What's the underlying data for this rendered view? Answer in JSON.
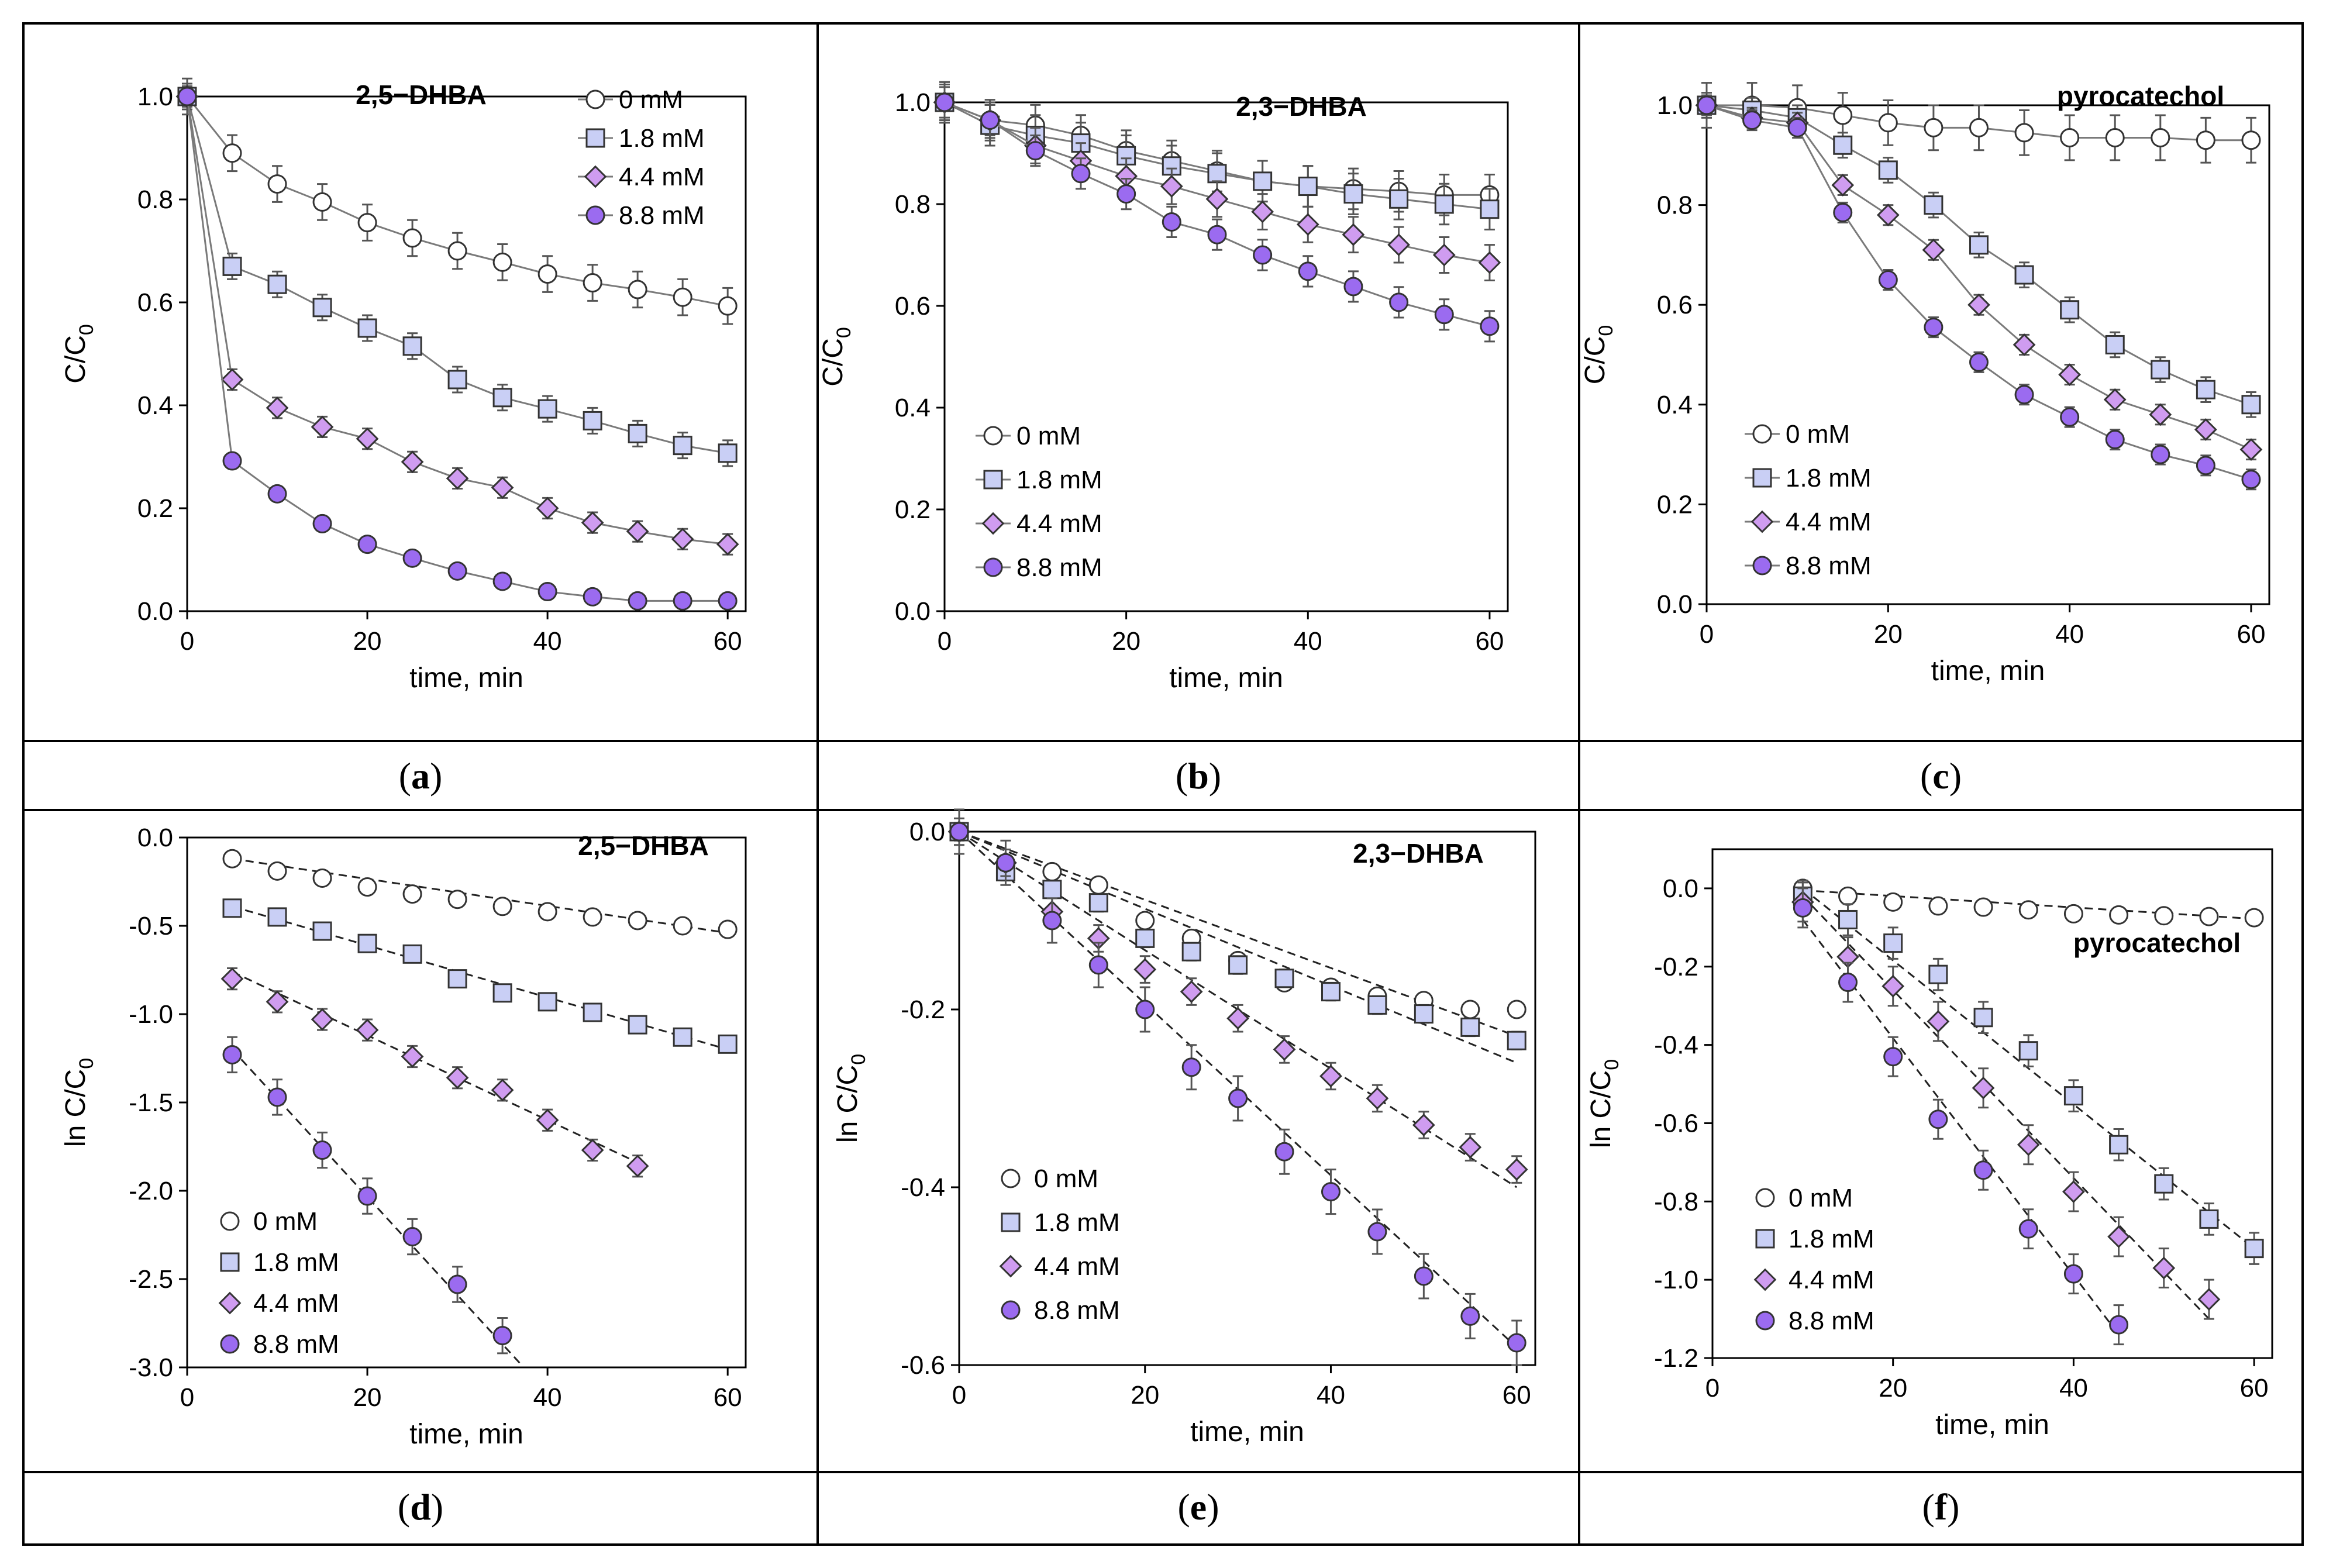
{
  "colors": {
    "c0": "#ffffff",
    "c18": "#c9cff5",
    "c44": "#cf9cf0",
    "c88": "#9b6bf0",
    "marker_stroke": "#333333",
    "line": "#7a7a7a"
  },
  "captions": [
    "a",
    "b",
    "c",
    "d",
    "e",
    "f"
  ],
  "chart_data": [
    {
      "type": "line",
      "title": "2,5−DHBA",
      "xlabel": "time, min",
      "ylabel": "C/C",
      "ylabel_sub": "0",
      "xlim": [
        0,
        62
      ],
      "ylim": [
        0,
        1.0
      ],
      "xticks": [
        0,
        20,
        40,
        60
      ],
      "yticks": [
        0.0,
        0.2,
        0.4,
        0.6,
        0.8,
        1.0
      ],
      "ytick_labels": [
        "0.0",
        "0.2",
        "0.4",
        "0.6",
        "0.8",
        "1.0"
      ],
      "legend_position": "top-right",
      "series": [
        {
          "name": "0 mM",
          "marker": "circle",
          "x": [
            0,
            5,
            10,
            15,
            20,
            25,
            30,
            35,
            40,
            45,
            50,
            55,
            60
          ],
          "y": [
            1.0,
            0.89,
            0.83,
            0.795,
            0.755,
            0.725,
            0.7,
            0.678,
            0.655,
            0.638,
            0.625,
            0.61,
            0.593
          ],
          "err": 0.035
        },
        {
          "name": "1.8 mM",
          "marker": "square",
          "x": [
            0,
            5,
            10,
            15,
            20,
            25,
            30,
            35,
            40,
            45,
            50,
            55,
            60
          ],
          "y": [
            1.0,
            0.67,
            0.635,
            0.59,
            0.55,
            0.515,
            0.45,
            0.415,
            0.393,
            0.37,
            0.345,
            0.322,
            0.307
          ],
          "err": 0.025
        },
        {
          "name": "4.4 mM",
          "marker": "diamond",
          "x": [
            0,
            5,
            10,
            15,
            20,
            25,
            30,
            35,
            40,
            45,
            50,
            55,
            60
          ],
          "y": [
            1.0,
            0.45,
            0.395,
            0.358,
            0.335,
            0.29,
            0.258,
            0.24,
            0.2,
            0.172,
            0.155,
            0.14,
            0.13
          ],
          "err": 0.02
        },
        {
          "name": "8.8 mM",
          "marker": "circle",
          "x": [
            0,
            5,
            10,
            15,
            20,
            25,
            30,
            35,
            40,
            45,
            50,
            55,
            60
          ],
          "y": [
            1.0,
            0.292,
            0.228,
            0.17,
            0.13,
            0.103,
            0.078,
            0.058,
            0.038,
            0.028,
            0.02,
            0.02,
            0.02
          ],
          "err": 0.0
        }
      ]
    },
    {
      "type": "line",
      "title": "2,3−DHBA",
      "xlabel": "time, min",
      "ylabel": "C/C",
      "ylabel_sub": "0",
      "xlim": [
        0,
        62
      ],
      "ylim": [
        0,
        1.0
      ],
      "xticks": [
        0,
        20,
        40,
        60
      ],
      "yticks": [
        0.0,
        0.2,
        0.4,
        0.6,
        0.8,
        1.0
      ],
      "ytick_labels": [
        "0.0",
        "0.2",
        "0.4",
        "0.6",
        "0.8",
        "1.0"
      ],
      "legend_position": "bottom-left",
      "series": [
        {
          "name": "0 mM",
          "marker": "circle",
          "x": [
            0,
            5,
            10,
            15,
            20,
            25,
            30,
            35,
            40,
            45,
            50,
            55,
            60
          ],
          "y": [
            1.0,
            0.965,
            0.955,
            0.935,
            0.905,
            0.885,
            0.865,
            0.845,
            0.835,
            0.83,
            0.825,
            0.818,
            0.818
          ],
          "err": 0.04
        },
        {
          "name": "1.8 mM",
          "marker": "square",
          "x": [
            0,
            5,
            10,
            15,
            20,
            25,
            30,
            35,
            40,
            45,
            50,
            55,
            60
          ],
          "y": [
            1.0,
            0.955,
            0.935,
            0.92,
            0.895,
            0.875,
            0.86,
            0.845,
            0.835,
            0.82,
            0.81,
            0.8,
            0.79
          ],
          "err": 0.04
        },
        {
          "name": "4.4 mM",
          "marker": "diamond",
          "x": [
            0,
            5,
            10,
            15,
            20,
            25,
            30,
            35,
            40,
            45,
            50,
            55,
            60
          ],
          "y": [
            1.0,
            0.965,
            0.915,
            0.885,
            0.855,
            0.835,
            0.81,
            0.785,
            0.76,
            0.74,
            0.72,
            0.7,
            0.685
          ],
          "err": 0.035
        },
        {
          "name": "8.8 mM",
          "marker": "circle",
          "x": [
            0,
            5,
            10,
            15,
            20,
            25,
            30,
            35,
            40,
            45,
            50,
            55,
            60
          ],
          "y": [
            1.0,
            0.965,
            0.905,
            0.86,
            0.82,
            0.765,
            0.74,
            0.7,
            0.668,
            0.638,
            0.607,
            0.583,
            0.56
          ],
          "err": 0.03
        }
      ]
    },
    {
      "type": "line",
      "title": "pyrocatechol",
      "xlabel": "time, min",
      "ylabel": "C/C",
      "ylabel_sub": "0",
      "xlim": [
        0,
        62
      ],
      "ylim": [
        0,
        1.0
      ],
      "xticks": [
        0,
        20,
        40,
        60
      ],
      "yticks": [
        0.0,
        0.2,
        0.4,
        0.6,
        0.8,
        1.0
      ],
      "ytick_labels": [
        "0.0",
        "0.2",
        "0.4",
        "0.6",
        "0.8",
        "1.0"
      ],
      "legend_position": "bottom-left",
      "series": [
        {
          "name": "0 mM",
          "marker": "circle",
          "x": [
            0,
            5,
            10,
            15,
            20,
            25,
            30,
            35,
            40,
            45,
            50,
            55,
            60
          ],
          "y": [
            1.0,
            1.0,
            0.995,
            0.98,
            0.965,
            0.955,
            0.955,
            0.945,
            0.935,
            0.935,
            0.935,
            0.93,
            0.93
          ],
          "err": 0.045
        },
        {
          "name": "1.8 mM",
          "marker": "square",
          "x": [
            0,
            5,
            10,
            15,
            20,
            25,
            30,
            35,
            40,
            45,
            50,
            55,
            60
          ],
          "y": [
            1.0,
            0.99,
            0.975,
            0.92,
            0.87,
            0.8,
            0.72,
            0.66,
            0.59,
            0.52,
            0.47,
            0.43,
            0.4
          ],
          "err": 0.025
        },
        {
          "name": "4.4 mM",
          "marker": "diamond",
          "x": [
            0,
            5,
            10,
            15,
            20,
            25,
            30,
            35,
            40,
            45,
            50,
            55,
            60
          ],
          "y": [
            1.0,
            0.975,
            0.965,
            0.84,
            0.78,
            0.71,
            0.6,
            0.52,
            0.46,
            0.41,
            0.38,
            0.35,
            0.31
          ],
          "err": 0.02
        },
        {
          "name": "8.8 mM",
          "marker": "circle",
          "x": [
            0,
            5,
            10,
            15,
            20,
            25,
            30,
            35,
            40,
            45,
            50,
            55,
            60
          ],
          "y": [
            1.0,
            0.97,
            0.955,
            0.785,
            0.65,
            0.555,
            0.485,
            0.42,
            0.375,
            0.33,
            0.3,
            0.278,
            0.25
          ],
          "err": 0.02
        }
      ]
    },
    {
      "type": "scatter",
      "title": "2,5−DHBA",
      "xlabel": "time, min",
      "ylabel": "ln C/C",
      "ylabel_sub": "0",
      "xlim": [
        0,
        62
      ],
      "ylim": [
        -3.0,
        0.0
      ],
      "xticks": [
        0,
        20,
        40,
        60
      ],
      "yticks": [
        0.0,
        -0.5,
        -1.0,
        -1.5,
        -2.0,
        -2.5,
        -3.0
      ],
      "ytick_labels": [
        "0.0",
        "-0.5",
        "-1.0",
        "-1.5",
        "-2.0",
        "-2.5",
        "-3.0"
      ],
      "legend_position": "bottom-left",
      "series": [
        {
          "name": "0 mM",
          "marker": "circle",
          "x": [
            5,
            10,
            15,
            20,
            25,
            30,
            35,
            40,
            45,
            50,
            55,
            60
          ],
          "y": [
            -0.12,
            -0.19,
            -0.23,
            -0.28,
            -0.32,
            -0.35,
            -0.39,
            -0.42,
            -0.45,
            -0.47,
            -0.5,
            -0.52
          ],
          "err": 0.0,
          "fit": [
            [
              5,
              -0.12
            ],
            [
              60,
              -0.54
            ]
          ]
        },
        {
          "name": "1.8 mM",
          "marker": "square",
          "x": [
            5,
            10,
            15,
            20,
            25,
            30,
            35,
            40,
            45,
            50,
            55,
            60
          ],
          "y": [
            -0.4,
            -0.45,
            -0.53,
            -0.6,
            -0.66,
            -0.8,
            -0.88,
            -0.93,
            -0.99,
            -1.06,
            -1.13,
            -1.17
          ],
          "err": 0.04,
          "fit": [
            [
              5,
              -0.39
            ],
            [
              60,
              -1.2
            ]
          ]
        },
        {
          "name": "4.4 mM",
          "marker": "diamond",
          "x": [
            5,
            10,
            15,
            20,
            25,
            30,
            35,
            40,
            45,
            50
          ],
          "y": [
            -0.8,
            -0.93,
            -1.03,
            -1.09,
            -1.24,
            -1.36,
            -1.43,
            -1.6,
            -1.77,
            -1.86
          ],
          "err": 0.06,
          "fit": [
            [
              5,
              -0.76
            ],
            [
              50,
              -1.84
            ]
          ]
        },
        {
          "name": "8.8 mM",
          "marker": "circle",
          "x": [
            5,
            10,
            15,
            20,
            25,
            30,
            35
          ],
          "y": [
            -1.23,
            -1.47,
            -1.77,
            -2.03,
            -2.26,
            -2.53,
            -2.82
          ],
          "err": 0.1,
          "fit": [
            [
              5,
              -1.2
            ],
            [
              37,
              -2.98
            ]
          ]
        }
      ]
    },
    {
      "type": "scatter",
      "title": "2,3−DHBA",
      "xlabel": "time, min",
      "ylabel": "ln C/C",
      "ylabel_sub": "0",
      "xlim": [
        0,
        62
      ],
      "ylim": [
        -0.6,
        0.0
      ],
      "xticks": [
        0,
        20,
        40,
        60
      ],
      "yticks": [
        0.0,
        -0.2,
        -0.4,
        -0.6
      ],
      "ytick_labels": [
        "0.0",
        "-0.2",
        "-0.4",
        "-0.6"
      ],
      "legend_position": "bottom-left",
      "series": [
        {
          "name": "0 mM",
          "marker": "circle",
          "x": [
            0,
            5,
            10,
            15,
            20,
            25,
            30,
            35,
            40,
            45,
            50,
            55,
            60
          ],
          "y": [
            0,
            -0.035,
            -0.045,
            -0.06,
            -0.1,
            -0.12,
            -0.145,
            -0.17,
            -0.175,
            -0.185,
            -0.19,
            -0.2,
            -0.2
          ],
          "err": 0.0,
          "fit": [
            [
              0,
              0
            ],
            [
              60,
              -0.23
            ]
          ]
        },
        {
          "name": "1.8 mM",
          "marker": "square",
          "x": [
            0,
            5,
            10,
            15,
            20,
            25,
            30,
            35,
            40,
            45,
            50,
            55,
            60
          ],
          "y": [
            0,
            -0.045,
            -0.065,
            -0.08,
            -0.12,
            -0.135,
            -0.15,
            -0.165,
            -0.18,
            -0.195,
            -0.205,
            -0.22,
            -0.235
          ],
          "err": 0.01,
          "fit": [
            [
              0,
              0
            ],
            [
              60,
              -0.26
            ]
          ]
        },
        {
          "name": "4.4 mM",
          "marker": "diamond",
          "x": [
            0,
            5,
            10,
            15,
            20,
            25,
            30,
            35,
            40,
            45,
            50,
            55,
            60
          ],
          "y": [
            0,
            -0.035,
            -0.09,
            -0.12,
            -0.155,
            -0.18,
            -0.21,
            -0.245,
            -0.275,
            -0.3,
            -0.33,
            -0.355,
            -0.38
          ],
          "err": 0.015,
          "fit": [
            [
              0,
              0
            ],
            [
              60,
              -0.4
            ]
          ]
        },
        {
          "name": "8.8 mM",
          "marker": "circle",
          "x": [
            0,
            5,
            10,
            15,
            20,
            25,
            30,
            35,
            40,
            45,
            50,
            55,
            60
          ],
          "y": [
            0,
            -0.035,
            -0.1,
            -0.15,
            -0.2,
            -0.265,
            -0.3,
            -0.36,
            -0.405,
            -0.45,
            -0.5,
            -0.545,
            -0.575
          ],
          "err": 0.025,
          "fit": [
            [
              0,
              0
            ],
            [
              60,
              -0.58
            ]
          ]
        }
      ]
    },
    {
      "type": "scatter",
      "title": "pyrocatechol",
      "xlabel": "time, min",
      "ylabel": "ln C/C",
      "ylabel_sub": "0",
      "xlim": [
        0,
        62
      ],
      "ylim": [
        -1.2,
        0.1
      ],
      "xticks": [
        0,
        20,
        40,
        60
      ],
      "yticks": [
        0.0,
        -0.2,
        -0.4,
        -0.6,
        -0.8,
        -1.0,
        -1.2
      ],
      "ytick_labels": [
        "0.0",
        "-0.2",
        "-0.4",
        "-0.6",
        "-0.8",
        "-1.0",
        "-1.2"
      ],
      "legend_position": "bottom-left",
      "series": [
        {
          "name": "0 mM",
          "marker": "circle",
          "x": [
            10,
            15,
            20,
            25,
            30,
            35,
            40,
            45,
            50,
            55,
            60
          ],
          "y": [
            0.0,
            -0.02,
            -0.035,
            -0.045,
            -0.048,
            -0.055,
            -0.065,
            -0.068,
            -0.07,
            -0.072,
            -0.075
          ],
          "err": 0.0,
          "fit": [
            [
              10,
              -0.005
            ],
            [
              60,
              -0.078
            ]
          ]
        },
        {
          "name": "1.8 mM",
          "marker": "square",
          "x": [
            10,
            15,
            20,
            25,
            30,
            35,
            40,
            45,
            50,
            55,
            60
          ],
          "y": [
            -0.02,
            -0.08,
            -0.14,
            -0.22,
            -0.33,
            -0.415,
            -0.53,
            -0.655,
            -0.755,
            -0.845,
            -0.92
          ],
          "err": 0.04,
          "fit": [
            [
              10,
              0.0
            ],
            [
              60,
              -0.92
            ]
          ]
        },
        {
          "name": "4.4 mM",
          "marker": "diamond",
          "x": [
            10,
            15,
            20,
            25,
            30,
            35,
            40,
            45,
            50,
            55
          ],
          "y": [
            -0.035,
            -0.175,
            -0.25,
            -0.34,
            -0.51,
            -0.655,
            -0.775,
            -0.89,
            -0.97,
            -1.05
          ],
          "err": 0.05,
          "fit": [
            [
              10,
              -0.02
            ],
            [
              55,
              -1.1
            ]
          ]
        },
        {
          "name": "8.8 mM",
          "marker": "circle",
          "x": [
            10,
            15,
            20,
            25,
            30,
            35,
            40,
            45
          ],
          "y": [
            -0.05,
            -0.24,
            -0.43,
            -0.59,
            -0.72,
            -0.87,
            -0.985,
            -1.115
          ],
          "err": 0.05,
          "fit": [
            [
              10,
              -0.08
            ],
            [
              45,
              -1.14
            ]
          ]
        }
      ]
    }
  ]
}
